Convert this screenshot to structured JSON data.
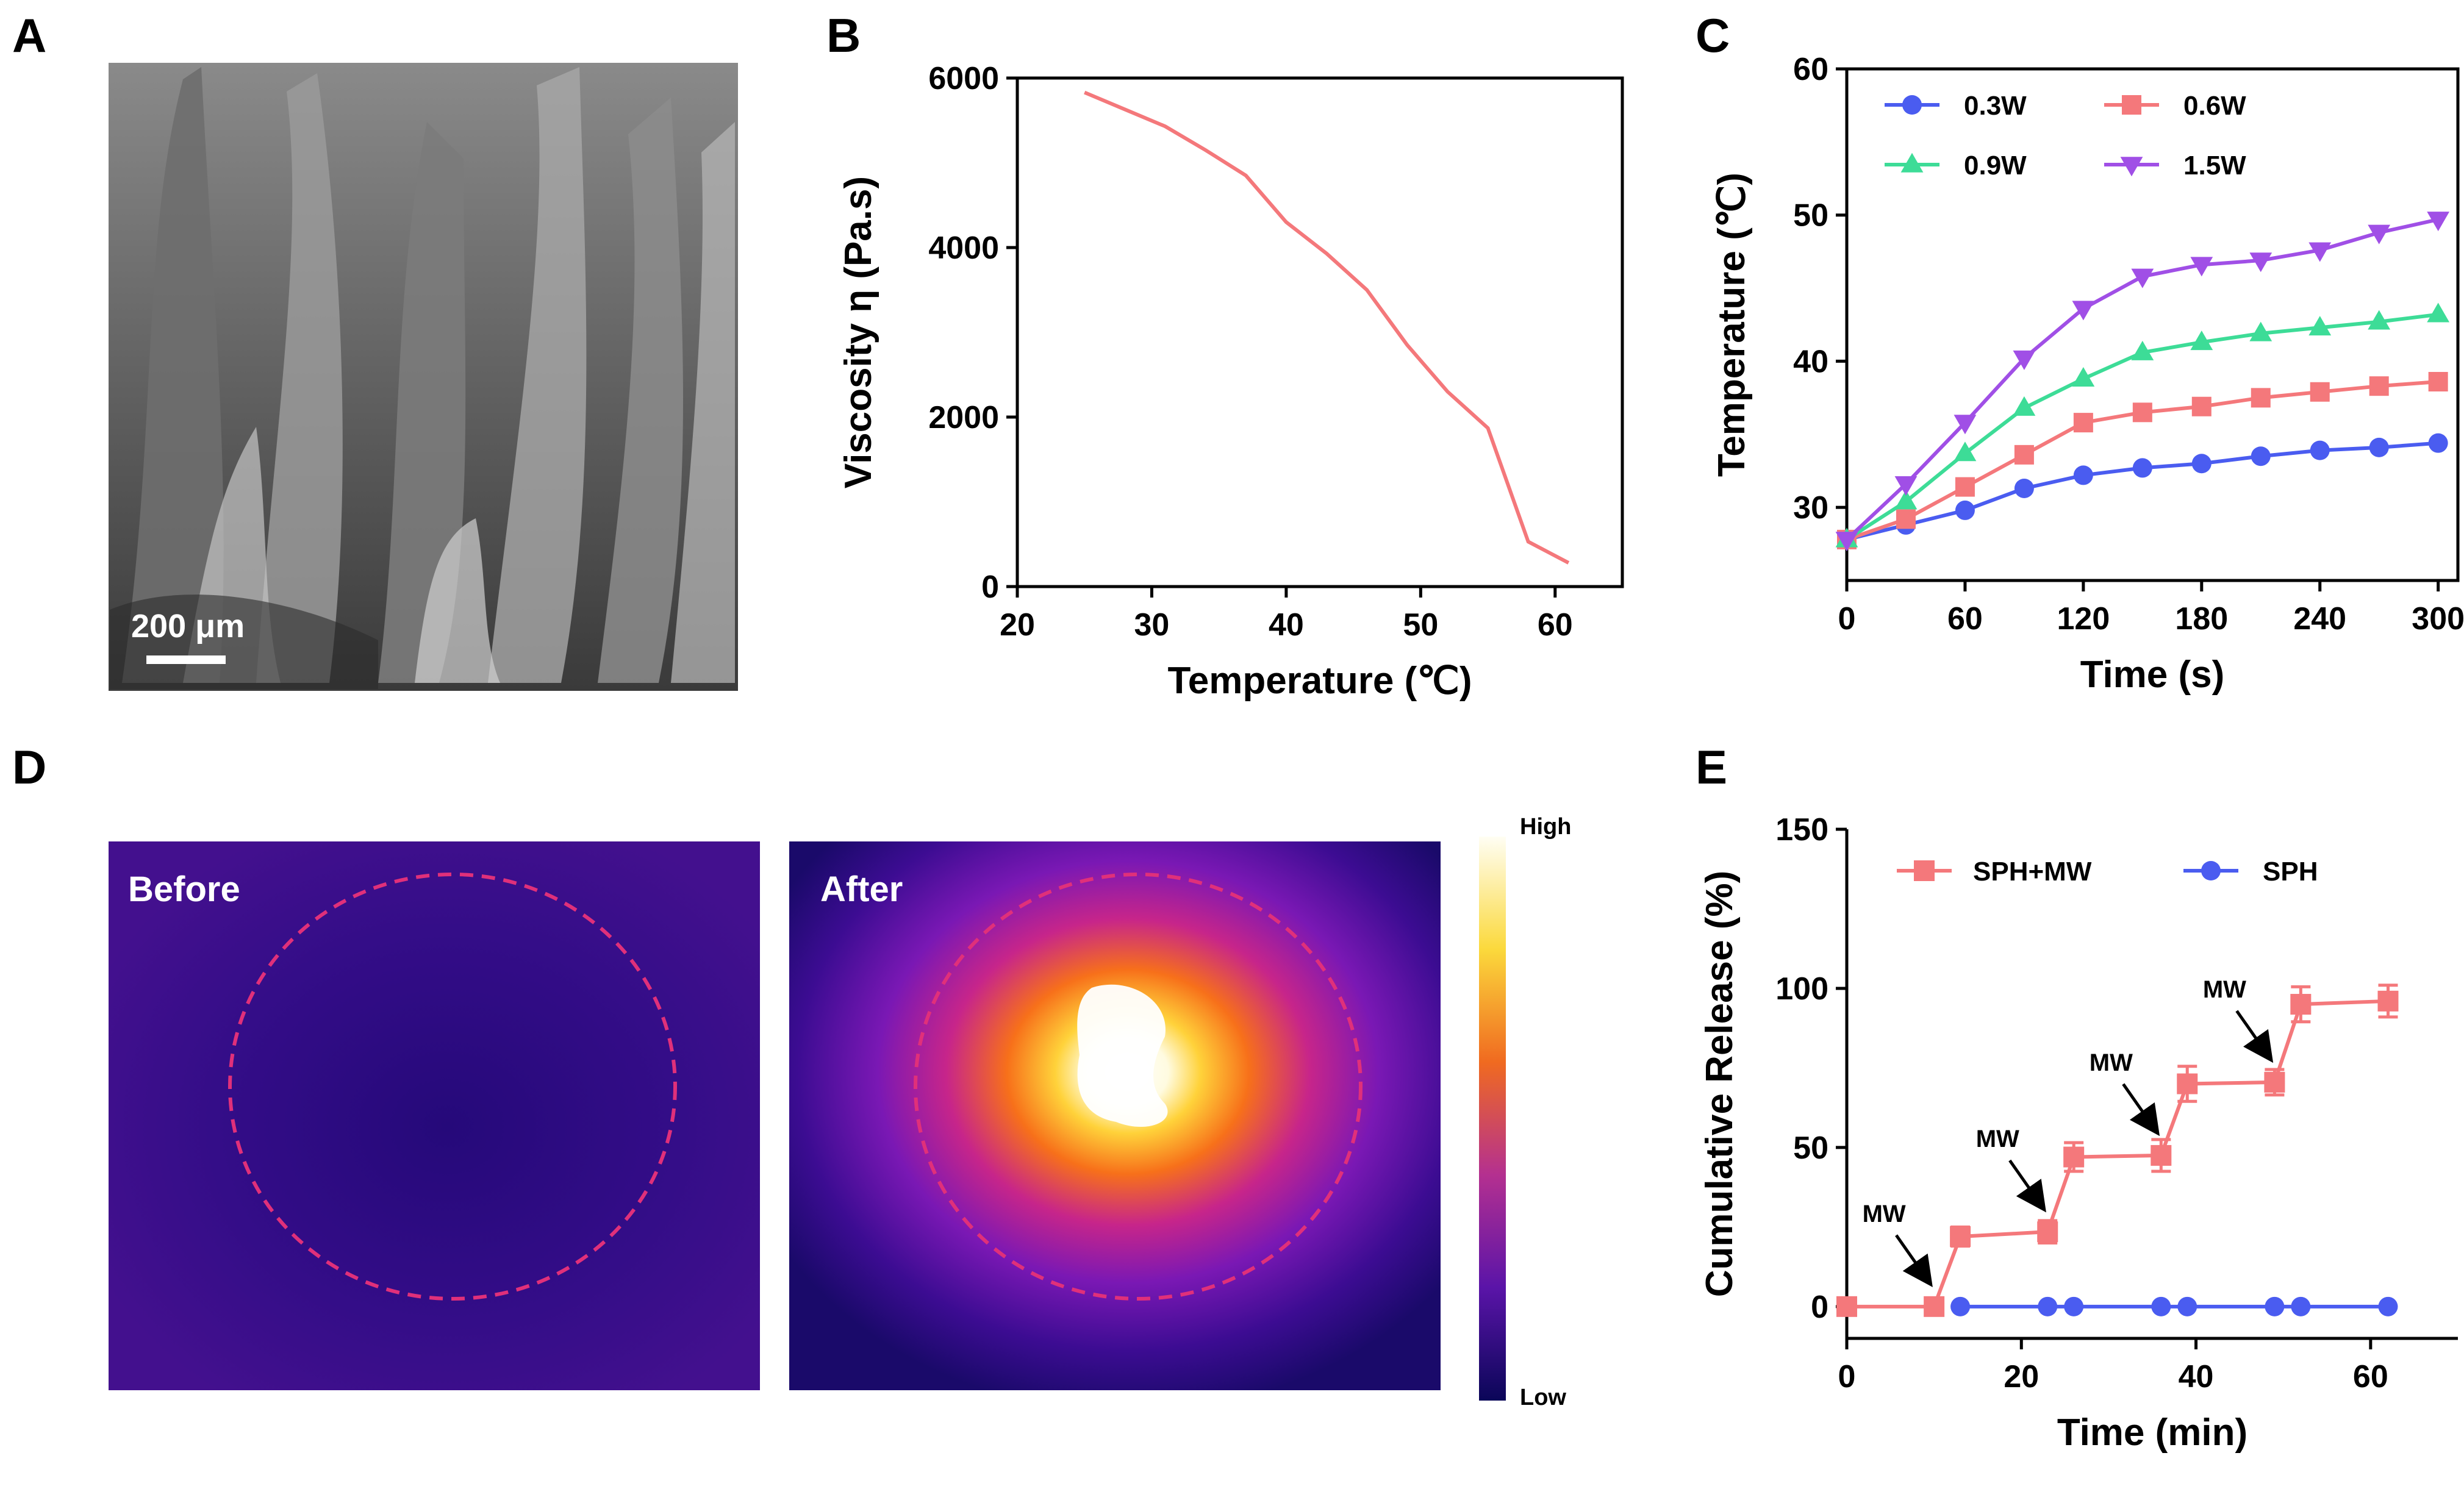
{
  "panels": {
    "a": {
      "letter": "A",
      "scale_bar": "200 μm"
    },
    "b": {
      "letter": "B"
    },
    "c": {
      "letter": "C"
    },
    "d": {
      "letter": "D",
      "before": "Before",
      "after": "After",
      "colorbar_high": "High",
      "colorbar_low": "Low"
    },
    "e": {
      "letter": "E",
      "annotation": "MW"
    }
  },
  "colors": {
    "red": "#f4787b",
    "blue": "#4a5cf0",
    "green": "#3ddc97",
    "purple": "#a04fe6",
    "thermal_bg": "#3e0f8c",
    "circle": "#e0307a"
  },
  "chart_data": [
    {
      "id": "B",
      "type": "line",
      "xlabel": "Temperature (℃)",
      "ylabel": "Viscosity η (Pa.s)",
      "xlim": [
        20,
        65
      ],
      "ylim": [
        0,
        6000
      ],
      "xticks": [
        20,
        30,
        40,
        50,
        60
      ],
      "yticks": [
        0,
        2000,
        4000,
        6000
      ],
      "series": [
        {
          "name": "viscosity",
          "x": [
            25,
            28,
            31,
            34,
            37,
            40,
            43,
            46,
            49,
            52,
            55,
            58,
            61
          ],
          "y": [
            5830,
            5630,
            5430,
            5150,
            4850,
            4300,
            3930,
            3500,
            2850,
            2300,
            1870,
            530,
            280
          ]
        }
      ]
    },
    {
      "id": "C",
      "type": "line",
      "xlabel": "Time (s)",
      "ylabel": "Temperature (℃)",
      "xlim": [
        0,
        310
      ],
      "ylim": [
        25,
        60
      ],
      "xticks": [
        0,
        60,
        120,
        180,
        240,
        300
      ],
      "yticks": [
        30,
        40,
        50,
        60
      ],
      "x": [
        0,
        30,
        60,
        90,
        120,
        150,
        180,
        210,
        240,
        270,
        300
      ],
      "series": [
        {
          "name": "0.3W",
          "marker": "circle",
          "values": [
            27.8,
            28.8,
            29.8,
            31.3,
            32.2,
            32.7,
            33.0,
            33.5,
            33.9,
            34.1,
            34.4
          ]
        },
        {
          "name": "0.6W",
          "marker": "square",
          "values": [
            27.8,
            29.2,
            31.4,
            33.6,
            35.8,
            36.5,
            36.9,
            37.5,
            37.9,
            38.3,
            38.6
          ]
        },
        {
          "name": "0.9W",
          "marker": "triangle-up",
          "values": [
            27.8,
            30.4,
            33.7,
            36.8,
            38.8,
            40.6,
            41.3,
            41.9,
            42.3,
            42.7,
            43.2
          ]
        },
        {
          "name": "1.5W",
          "marker": "triangle-down",
          "values": [
            27.8,
            31.6,
            35.8,
            40.2,
            43.6,
            45.8,
            46.6,
            46.9,
            47.6,
            48.8,
            49.7
          ]
        }
      ]
    },
    {
      "id": "E",
      "type": "line",
      "xlabel": "Time (min)",
      "ylabel": "Cumulative Release (%)",
      "xlim": [
        0,
        70
      ],
      "ylim": [
        -10,
        150
      ],
      "xticks": [
        0,
        20,
        40,
        60
      ],
      "yticks": [
        0,
        50,
        100,
        150
      ],
      "series": [
        {
          "name": "SPH+MW",
          "marker": "square",
          "x": [
            0,
            10,
            13,
            23,
            26,
            36,
            39,
            49,
            52,
            62
          ],
          "values": [
            0,
            0,
            22,
            23.5,
            47,
            47.5,
            70,
            70.5,
            95,
            96
          ],
          "errors": [
            0,
            0,
            3,
            3.5,
            4.5,
            5,
            5.5,
            4,
            5.5,
            5
          ]
        },
        {
          "name": "SPH",
          "marker": "circle",
          "x": [
            13,
            23,
            26,
            36,
            39,
            49,
            52,
            62
          ],
          "values": [
            0,
            0,
            0,
            0,
            0,
            0,
            0,
            0
          ]
        }
      ],
      "mw_events": [
        10,
        23,
        36,
        49
      ]
    }
  ]
}
